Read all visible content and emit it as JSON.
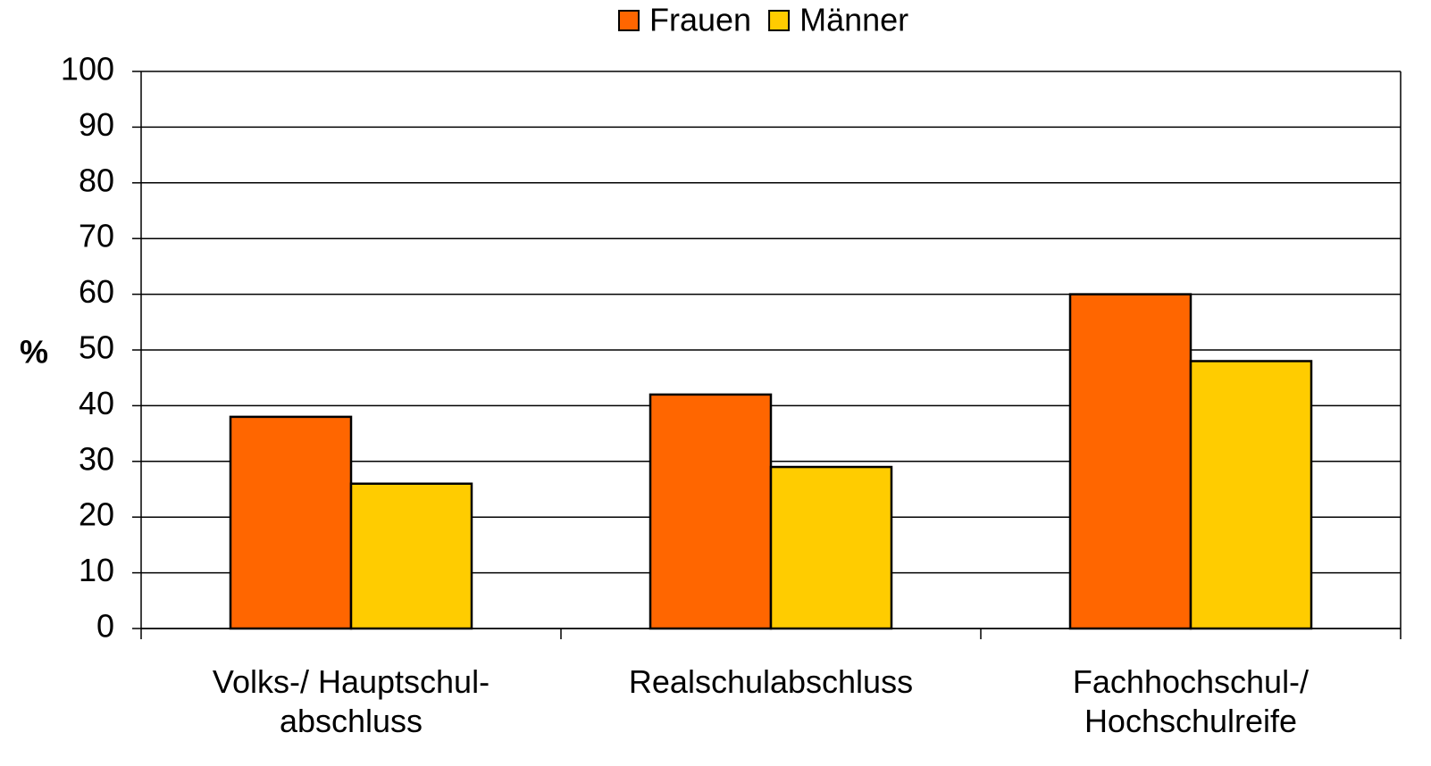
{
  "chart_data": {
    "type": "bar",
    "ylabel": "%",
    "categories": [
      "Volks-/ Hauptschul-\nabschluss",
      "Realschulabschluss",
      "Fachhochschul-/\nHochschulreife"
    ],
    "series": [
      {
        "name": "Frauen",
        "color": "#FF6600",
        "values": [
          38,
          42,
          60
        ]
      },
      {
        "name": "Männer",
        "color": "#FFCC00",
        "values": [
          26,
          29,
          48
        ]
      }
    ],
    "ylim": [
      0,
      100
    ],
    "yticks": [
      0,
      10,
      20,
      30,
      40,
      50,
      60,
      70,
      80,
      90,
      100
    ],
    "grid": true,
    "legend": "top"
  }
}
